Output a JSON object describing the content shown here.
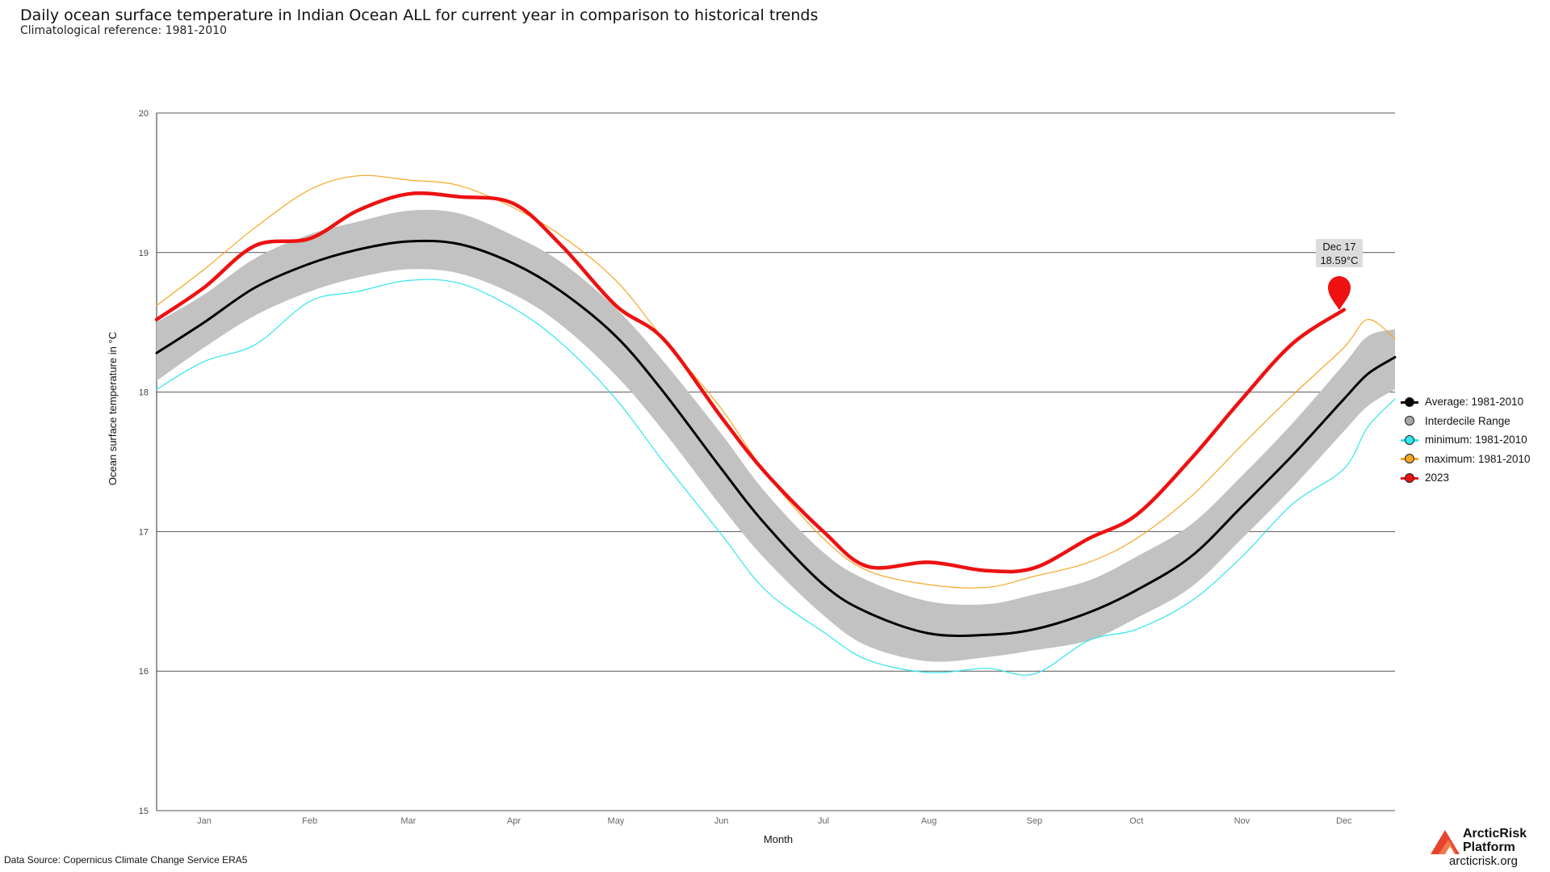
{
  "title": "Daily ocean surface temperature in Indian Ocean ALL for current year in comparison to historical trends",
  "subtitle": "Climatological reference: 1981-2010",
  "source": "Data Source: Copernicus Climate Change Service ERA5",
  "logo": {
    "name_line1": "ArcticRisk",
    "name_line2": "Platform",
    "url": "arcticrisk.org"
  },
  "colors": {
    "average": "#000000",
    "interdecile": "#c2c2c2",
    "minimum": "#2ee6ec",
    "maximum": "#f5a623",
    "current": "#ee1111"
  },
  "legend": [
    {
      "label": "Average: 1981-2010",
      "color": "#000000",
      "kind": "line"
    },
    {
      "label": "Interdecile Range",
      "color": "#a8a8a8",
      "kind": "dot"
    },
    {
      "label": "minimum: 1981-2010",
      "color": "#2ee6ec",
      "kind": "line"
    },
    {
      "label": "maximum: 1981-2010",
      "color": "#f5a623",
      "kind": "line"
    },
    {
      "label": "2023",
      "color": "#ee1111",
      "kind": "line"
    }
  ],
  "tooltip": {
    "date": "Dec 17",
    "value": "18.59°C"
  },
  "chart_data": {
    "type": "line",
    "xlabel": "Month",
    "ylabel": "Ocean surface temperature in °C",
    "xlim": [
      1,
      365
    ],
    "ylim": [
      15,
      20
    ],
    "yticks": [
      15,
      16,
      17,
      18,
      19,
      20
    ],
    "grid": "horizontal",
    "legend_position": "right",
    "month_ticks": [
      {
        "label": "Jan",
        "day": 15
      },
      {
        "label": "Feb",
        "day": 46
      },
      {
        "label": "Mar",
        "day": 75
      },
      {
        "label": "Apr",
        "day": 106
      },
      {
        "label": "May",
        "day": 136
      },
      {
        "label": "Jun",
        "day": 167
      },
      {
        "label": "Jul",
        "day": 197
      },
      {
        "label": "Aug",
        "day": 228
      },
      {
        "label": "Sep",
        "day": 259
      },
      {
        "label": "Oct",
        "day": 289
      },
      {
        "label": "Nov",
        "day": 320
      },
      {
        "label": "Dec",
        "day": 350
      }
    ],
    "days": [
      1,
      15,
      30,
      46,
      60,
      75,
      90,
      106,
      120,
      136,
      150,
      167,
      180,
      197,
      210,
      228,
      245,
      259,
      275,
      289,
      305,
      320,
      335,
      350,
      357,
      365
    ],
    "series": [
      {
        "name": "Average: 1981-2010",
        "values": [
          18.28,
          18.5,
          18.75,
          18.92,
          19.02,
          19.08,
          19.06,
          18.92,
          18.72,
          18.4,
          18.0,
          17.45,
          17.05,
          16.62,
          16.42,
          16.27,
          16.26,
          16.3,
          16.42,
          16.58,
          16.82,
          17.18,
          17.55,
          17.95,
          18.13,
          18.25
        ]
      },
      {
        "name": "Interdecile low",
        "values": [
          18.08,
          18.32,
          18.55,
          18.72,
          18.82,
          18.88,
          18.85,
          18.7,
          18.48,
          18.12,
          17.72,
          17.18,
          16.8,
          16.4,
          16.18,
          16.07,
          16.1,
          16.15,
          16.22,
          16.38,
          16.6,
          16.95,
          17.32,
          17.72,
          17.9,
          18.02
        ]
      },
      {
        "name": "Interdecile high",
        "values": [
          18.5,
          18.7,
          18.96,
          19.13,
          19.22,
          19.3,
          19.28,
          19.12,
          18.93,
          18.6,
          18.22,
          17.7,
          17.28,
          16.85,
          16.65,
          16.5,
          16.48,
          16.55,
          16.65,
          16.82,
          17.05,
          17.4,
          17.78,
          18.2,
          18.4,
          18.45
        ]
      },
      {
        "name": "minimum: 1981-2010",
        "values": [
          18.02,
          18.22,
          18.34,
          18.65,
          18.72,
          18.8,
          18.78,
          18.6,
          18.35,
          17.95,
          17.5,
          16.98,
          16.58,
          16.28,
          16.08,
          15.99,
          16.02,
          15.98,
          16.22,
          16.3,
          16.5,
          16.82,
          17.2,
          17.45,
          17.75,
          17.95
        ]
      },
      {
        "name": "maximum: 1981-2010",
        "values": [
          18.62,
          18.88,
          19.18,
          19.45,
          19.55,
          19.52,
          19.48,
          19.32,
          19.12,
          18.8,
          18.38,
          17.88,
          17.42,
          16.95,
          16.72,
          16.62,
          16.6,
          16.68,
          16.78,
          16.95,
          17.25,
          17.62,
          17.98,
          18.32,
          18.52,
          18.38
        ]
      },
      {
        "name": "2023",
        "values": [
          18.52,
          18.75,
          19.05,
          19.1,
          19.3,
          19.42,
          19.4,
          19.35,
          19.05,
          18.62,
          18.38,
          17.82,
          17.42,
          17.0,
          16.75,
          16.78,
          16.72,
          16.74,
          16.95,
          17.12,
          17.52,
          17.95,
          18.35,
          18.59
        ]
      }
    ]
  }
}
